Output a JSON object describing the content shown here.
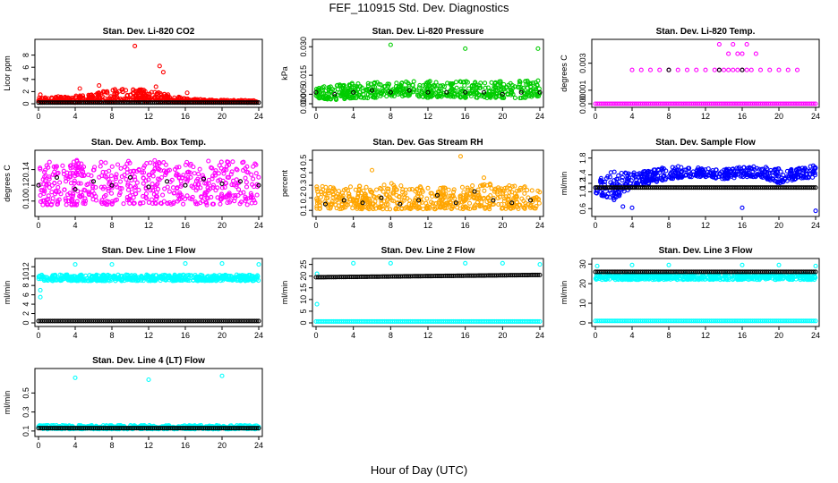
{
  "figure": {
    "title": "FEF_110915  Std. Dev. Diagnostics",
    "xlabel": "Hour of Day (UTC)"
  },
  "chart_data": [
    {
      "type": "scatter",
      "title": "Stan. Dev. Li-820 CO2",
      "ylabel": "Licor ppm",
      "xlim": [
        0,
        24
      ],
      "ylim": [
        0,
        10
      ],
      "xticks": [
        0,
        4,
        8,
        12,
        16,
        20,
        24
      ],
      "yticks": [
        0,
        2,
        4,
        6,
        8
      ],
      "series": [
        {
          "color": "#ff0000",
          "pattern": "band",
          "x": [
            0,
            2,
            4,
            6,
            8,
            10,
            12,
            14,
            16,
            18,
            20,
            22,
            24
          ],
          "low": [
            0.2,
            0.2,
            0.2,
            0.3,
            0.4,
            0.5,
            0.4,
            0.3,
            0.2,
            0.2,
            0.2,
            0.2,
            0.2
          ],
          "high": [
            1.0,
            1.2,
            1.3,
            1.6,
            2.4,
            2.6,
            2.2,
            1.6,
            0.9,
            0.7,
            0.6,
            0.6,
            0.5
          ],
          "outliers": [
            [
              0.2,
              1.5
            ],
            [
              4.5,
              2.5
            ],
            [
              6.6,
              3.0
            ],
            [
              10.5,
              9.5
            ],
            [
              13.2,
              6.2
            ],
            [
              13.6,
              5.2
            ],
            [
              12.8,
              2.8
            ],
            [
              16.2,
              1.8
            ]
          ]
        },
        {
          "color": "#000000",
          "pattern": "line",
          "x": [
            0,
            24
          ],
          "y": [
            0.2,
            0.2
          ]
        }
      ]
    },
    {
      "type": "scatter",
      "title": "Stan. Dev. Li-820 Pressure",
      "ylabel": "kPa",
      "xlim": [
        0,
        24
      ],
      "ylim": [
        0,
        0.032
      ],
      "xticks": [
        0,
        4,
        8,
        12,
        16,
        20,
        24
      ],
      "yticks": [
        0.0,
        0.005,
        0.015,
        0.03
      ],
      "ytick_labels": [
        "0.000",
        "0.005",
        "0.015",
        "0.030"
      ],
      "series": [
        {
          "color": "#00cc00",
          "pattern": "band",
          "x": [
            0,
            2,
            4,
            6,
            8,
            10,
            12,
            14,
            16,
            18,
            20,
            22,
            24
          ],
          "low": [
            0.003,
            0.002,
            0.003,
            0.003,
            0.004,
            0.004,
            0.003,
            0.004,
            0.003,
            0.003,
            0.003,
            0.003,
            0.004
          ],
          "high": [
            0.009,
            0.01,
            0.011,
            0.012,
            0.011,
            0.012,
            0.012,
            0.011,
            0.012,
            0.011,
            0.012,
            0.012,
            0.013
          ],
          "outliers": [
            [
              8,
              0.031
            ],
            [
              16,
              0.029
            ],
            [
              23.8,
              0.029
            ]
          ]
        },
        {
          "color": "#000000",
          "pattern": "scatter",
          "x": [
            0,
            2,
            4,
            6,
            8,
            10,
            12,
            14,
            16,
            18,
            20,
            22,
            24
          ],
          "y": [
            0.006,
            0.005,
            0.006,
            0.007,
            0.006,
            0.007,
            0.006,
            0.006,
            0.006,
            0.006,
            0.005,
            0.006,
            0.006
          ]
        }
      ]
    },
    {
      "type": "scatter",
      "title": "Stan. Dev. Li-820 Temp.",
      "ylabel": "degrees C",
      "xlim": [
        0,
        24
      ],
      "ylim": [
        0,
        0.0045
      ],
      "xticks": [
        0,
        4,
        8,
        12,
        16,
        20,
        24
      ],
      "yticks": [
        0.0,
        0.001,
        0.003
      ],
      "ytick_labels": [
        "0.000",
        "0.001",
        "0.003"
      ],
      "series": [
        {
          "color": "#ff00ff",
          "pattern": "line",
          "x": [
            0,
            24
          ],
          "y": [
            0,
            0
          ]
        },
        {
          "color": "#ff00ff",
          "pattern": "scatter",
          "x": [
            4,
            5,
            6,
            7,
            8,
            9,
            10,
            11,
            12,
            13,
            13.5,
            14,
            14.5,
            15,
            15.5,
            16,
            16.5,
            17,
            18,
            19,
            20,
            21,
            22,
            13.5,
            14.5,
            15.5,
            16.5,
            16,
            15,
            17.5
          ],
          "y": [
            0.0025,
            0.0025,
            0.0025,
            0.0025,
            0.0025,
            0.0025,
            0.0025,
            0.0025,
            0.0025,
            0.0025,
            0.0025,
            0.0025,
            0.0025,
            0.0025,
            0.0025,
            0.0025,
            0.0025,
            0.0025,
            0.0025,
            0.0025,
            0.0025,
            0.0025,
            0.0025,
            0.0044,
            0.0037,
            0.0037,
            0.0044,
            0.0037,
            0.0044,
            0.0037
          ]
        },
        {
          "color": "#000000",
          "pattern": "scatter",
          "x": [
            8,
            13.5,
            16
          ],
          "y": [
            0.0025,
            0.0025,
            0.0025
          ]
        }
      ]
    },
    {
      "type": "scatter",
      "title": "Stan. Dev. Amb. Box Temp.",
      "ylabel": "degrees C",
      "xlim": [
        0,
        24
      ],
      "ylim": [
        0.085,
        0.16
      ],
      "xticks": [
        0,
        4,
        8,
        12,
        16,
        20,
        24
      ],
      "yticks": [
        0.1,
        0.12,
        0.14
      ],
      "ytick_labels": [
        "0.10",
        "0.12",
        "0.14"
      ],
      "series": [
        {
          "color": "#ff00ff",
          "pattern": "band",
          "x": [
            0,
            4,
            8,
            12,
            16,
            20,
            24
          ],
          "low": [
            0.095,
            0.095,
            0.095,
            0.095,
            0.095,
            0.095,
            0.095
          ],
          "high": [
            0.15,
            0.152,
            0.15,
            0.152,
            0.15,
            0.152,
            0.15
          ],
          "outliers": []
        },
        {
          "color": "#000000",
          "pattern": "scatter",
          "x": [
            0,
            2,
            4,
            6,
            8,
            10,
            12,
            14,
            16,
            18,
            20,
            22,
            24
          ],
          "y": [
            0.12,
            0.13,
            0.115,
            0.125,
            0.12,
            0.13,
            0.118,
            0.125,
            0.12,
            0.128,
            0.122,
            0.125,
            0.12
          ]
        }
      ]
    },
    {
      "type": "scatter",
      "title": "Stan. Dev. Gas Stream RH",
      "ylabel": "percent",
      "xlim": [
        0,
        24
      ],
      "ylim": [
        0.08,
        0.55
      ],
      "xticks": [
        0,
        4,
        8,
        12,
        16,
        20,
        24
      ],
      "yticks": [
        0.1,
        0.2,
        0.3,
        0.4,
        0.5
      ],
      "series": [
        {
          "color": "#ffa500",
          "pattern": "band",
          "x": [
            0,
            2,
            4,
            6,
            8,
            10,
            12,
            14,
            16,
            18,
            20,
            22,
            24
          ],
          "low": [
            0.11,
            0.11,
            0.11,
            0.11,
            0.11,
            0.11,
            0.11,
            0.11,
            0.11,
            0.11,
            0.11,
            0.11,
            0.11
          ],
          "high": [
            0.3,
            0.28,
            0.3,
            0.28,
            0.32,
            0.28,
            0.3,
            0.28,
            0.3,
            0.32,
            0.3,
            0.3,
            0.28
          ],
          "outliers": [
            [
              6,
              0.42
            ],
            [
              15.5,
              0.53
            ],
            [
              18,
              0.36
            ]
          ]
        },
        {
          "color": "#000000",
          "pattern": "scatter",
          "x": [
            1,
            3,
            5,
            7,
            9,
            11,
            13,
            15,
            17,
            19,
            21,
            23
          ],
          "y": [
            0.15,
            0.18,
            0.16,
            0.2,
            0.15,
            0.18,
            0.22,
            0.16,
            0.25,
            0.18,
            0.16,
            0.18
          ]
        }
      ]
    },
    {
      "type": "scatter",
      "title": "Stan. Dev. Sample Flow",
      "ylabel": "ml/min",
      "xlim": [
        0,
        24
      ],
      "ylim": [
        0.5,
        1.9
      ],
      "xticks": [
        0,
        4,
        8,
        12,
        16,
        20,
        24
      ],
      "yticks": [
        0.6,
        1.0,
        1.2,
        1.4,
        1.8
      ],
      "ytick_labels": [
        "0.6",
        "1.0",
        "1.2",
        "1.4",
        "1.8"
      ],
      "series": [
        {
          "color": "#0000ff",
          "pattern": "band",
          "x": [
            0,
            2,
            4,
            6,
            8,
            10,
            12,
            14,
            16,
            18,
            20,
            22,
            24
          ],
          "low": [
            0.95,
            0.8,
            1.1,
            1.2,
            1.3,
            1.35,
            1.35,
            1.3,
            1.35,
            1.35,
            1.2,
            1.3,
            1.35
          ],
          "high": [
            1.25,
            1.5,
            1.45,
            1.5,
            1.62,
            1.6,
            1.55,
            1.55,
            1.6,
            1.6,
            1.55,
            1.58,
            1.65
          ],
          "outliers": [
            [
              3,
              0.65
            ],
            [
              4,
              0.62
            ],
            [
              16,
              0.62
            ],
            [
              24,
              0.55
            ]
          ]
        },
        {
          "color": "#000000",
          "pattern": "line",
          "x": [
            0,
            24
          ],
          "y": [
            1.1,
            1.1
          ]
        }
      ]
    },
    {
      "type": "scatter",
      "title": "Stan. Dev. Line 1 Flow",
      "ylabel": "ml/min",
      "xlim": [
        0,
        24
      ],
      "ylim": [
        0,
        13
      ],
      "xticks": [
        0,
        4,
        8,
        12,
        16,
        20,
        24
      ],
      "yticks": [
        0,
        2,
        4,
        6,
        8,
        10,
        12
      ],
      "series": [
        {
          "color": "#00ffff",
          "pattern": "band",
          "x": [
            0,
            24
          ],
          "low": [
            9.0,
            9.0
          ],
          "high": [
            10.3,
            10.3
          ],
          "outliers": [
            [
              0.2,
              5.5
            ],
            [
              0.2,
              7.0
            ],
            [
              4,
              12.5
            ],
            [
              8,
              12.5
            ],
            [
              16,
              12.7
            ],
            [
              20,
              12.7
            ],
            [
              24,
              12.5
            ]
          ]
        },
        {
          "color": "#000000",
          "pattern": "line",
          "x": [
            0,
            24
          ],
          "y": [
            0.4,
            0.4
          ]
        }
      ]
    },
    {
      "type": "scatter",
      "title": "Stan. Dev. Line 2 Flow",
      "ylabel": "ml/min",
      "xlim": [
        0,
        24
      ],
      "ylim": [
        0,
        26
      ],
      "xticks": [
        0,
        4,
        8,
        12,
        16,
        20,
        24
      ],
      "yticks": [
        0,
        5,
        10,
        15,
        20,
        25
      ],
      "series": [
        {
          "color": "#00ffff",
          "pattern": "line",
          "x": [
            0,
            24
          ],
          "y": [
            0.6,
            0.6
          ]
        },
        {
          "color": "#00ffff",
          "pattern": "scatter",
          "x": [
            0.1,
            0.1,
            4,
            8,
            16,
            20,
            24
          ],
          "y": [
            8.0,
            21.0,
            25.5,
            25.5,
            25.5,
            25.5,
            25.0
          ]
        },
        {
          "color": "#000000",
          "pattern": "line",
          "x": [
            0,
            24
          ],
          "y": [
            19.5,
            20.5
          ]
        }
      ]
    },
    {
      "type": "scatter",
      "title": "Stan. Dev. Line 3 Flow",
      "ylabel": "ml/min",
      "xlim": [
        0,
        24
      ],
      "ylim": [
        0,
        31
      ],
      "xticks": [
        0,
        4,
        8,
        12,
        16,
        20,
        24
      ],
      "yticks": [
        0,
        10,
        20,
        30
      ],
      "series": [
        {
          "color": "#00ffff",
          "pattern": "band",
          "x": [
            0,
            24
          ],
          "low": [
            22,
            22
          ],
          "high": [
            25,
            25
          ],
          "outliers": [
            [
              0.2,
              29
            ],
            [
              4,
              29.5
            ],
            [
              8,
              29.5
            ],
            [
              16,
              29.5
            ],
            [
              20,
              29.5
            ],
            [
              24,
              29
            ]
          ]
        },
        {
          "color": "#00ffff",
          "pattern": "line",
          "x": [
            0,
            24
          ],
          "y": [
            1.0,
            1.0
          ]
        },
        {
          "color": "#000000",
          "pattern": "line",
          "x": [
            0,
            24
          ],
          "y": [
            26,
            26
          ]
        }
      ]
    },
    {
      "type": "scatter",
      "title": "Stan. Dev. Line 4 (LT) Flow",
      "ylabel": "ml/min",
      "xlim": [
        0,
        24
      ],
      "ylim": [
        0.08,
        0.72
      ],
      "xticks": [
        0,
        4,
        8,
        12,
        16,
        20,
        24
      ],
      "yticks": [
        0.1,
        0.3,
        0.5
      ],
      "series": [
        {
          "color": "#00ffff",
          "pattern": "band",
          "x": [
            0,
            24
          ],
          "low": [
            0.12,
            0.12
          ],
          "high": [
            0.16,
            0.16
          ],
          "outliers": [
            [
              4,
              0.66
            ],
            [
              12,
              0.64
            ],
            [
              20,
              0.68
            ]
          ]
        },
        {
          "color": "#000000",
          "pattern": "line",
          "x": [
            0,
            24
          ],
          "y": [
            0.13,
            0.13
          ]
        }
      ]
    }
  ]
}
